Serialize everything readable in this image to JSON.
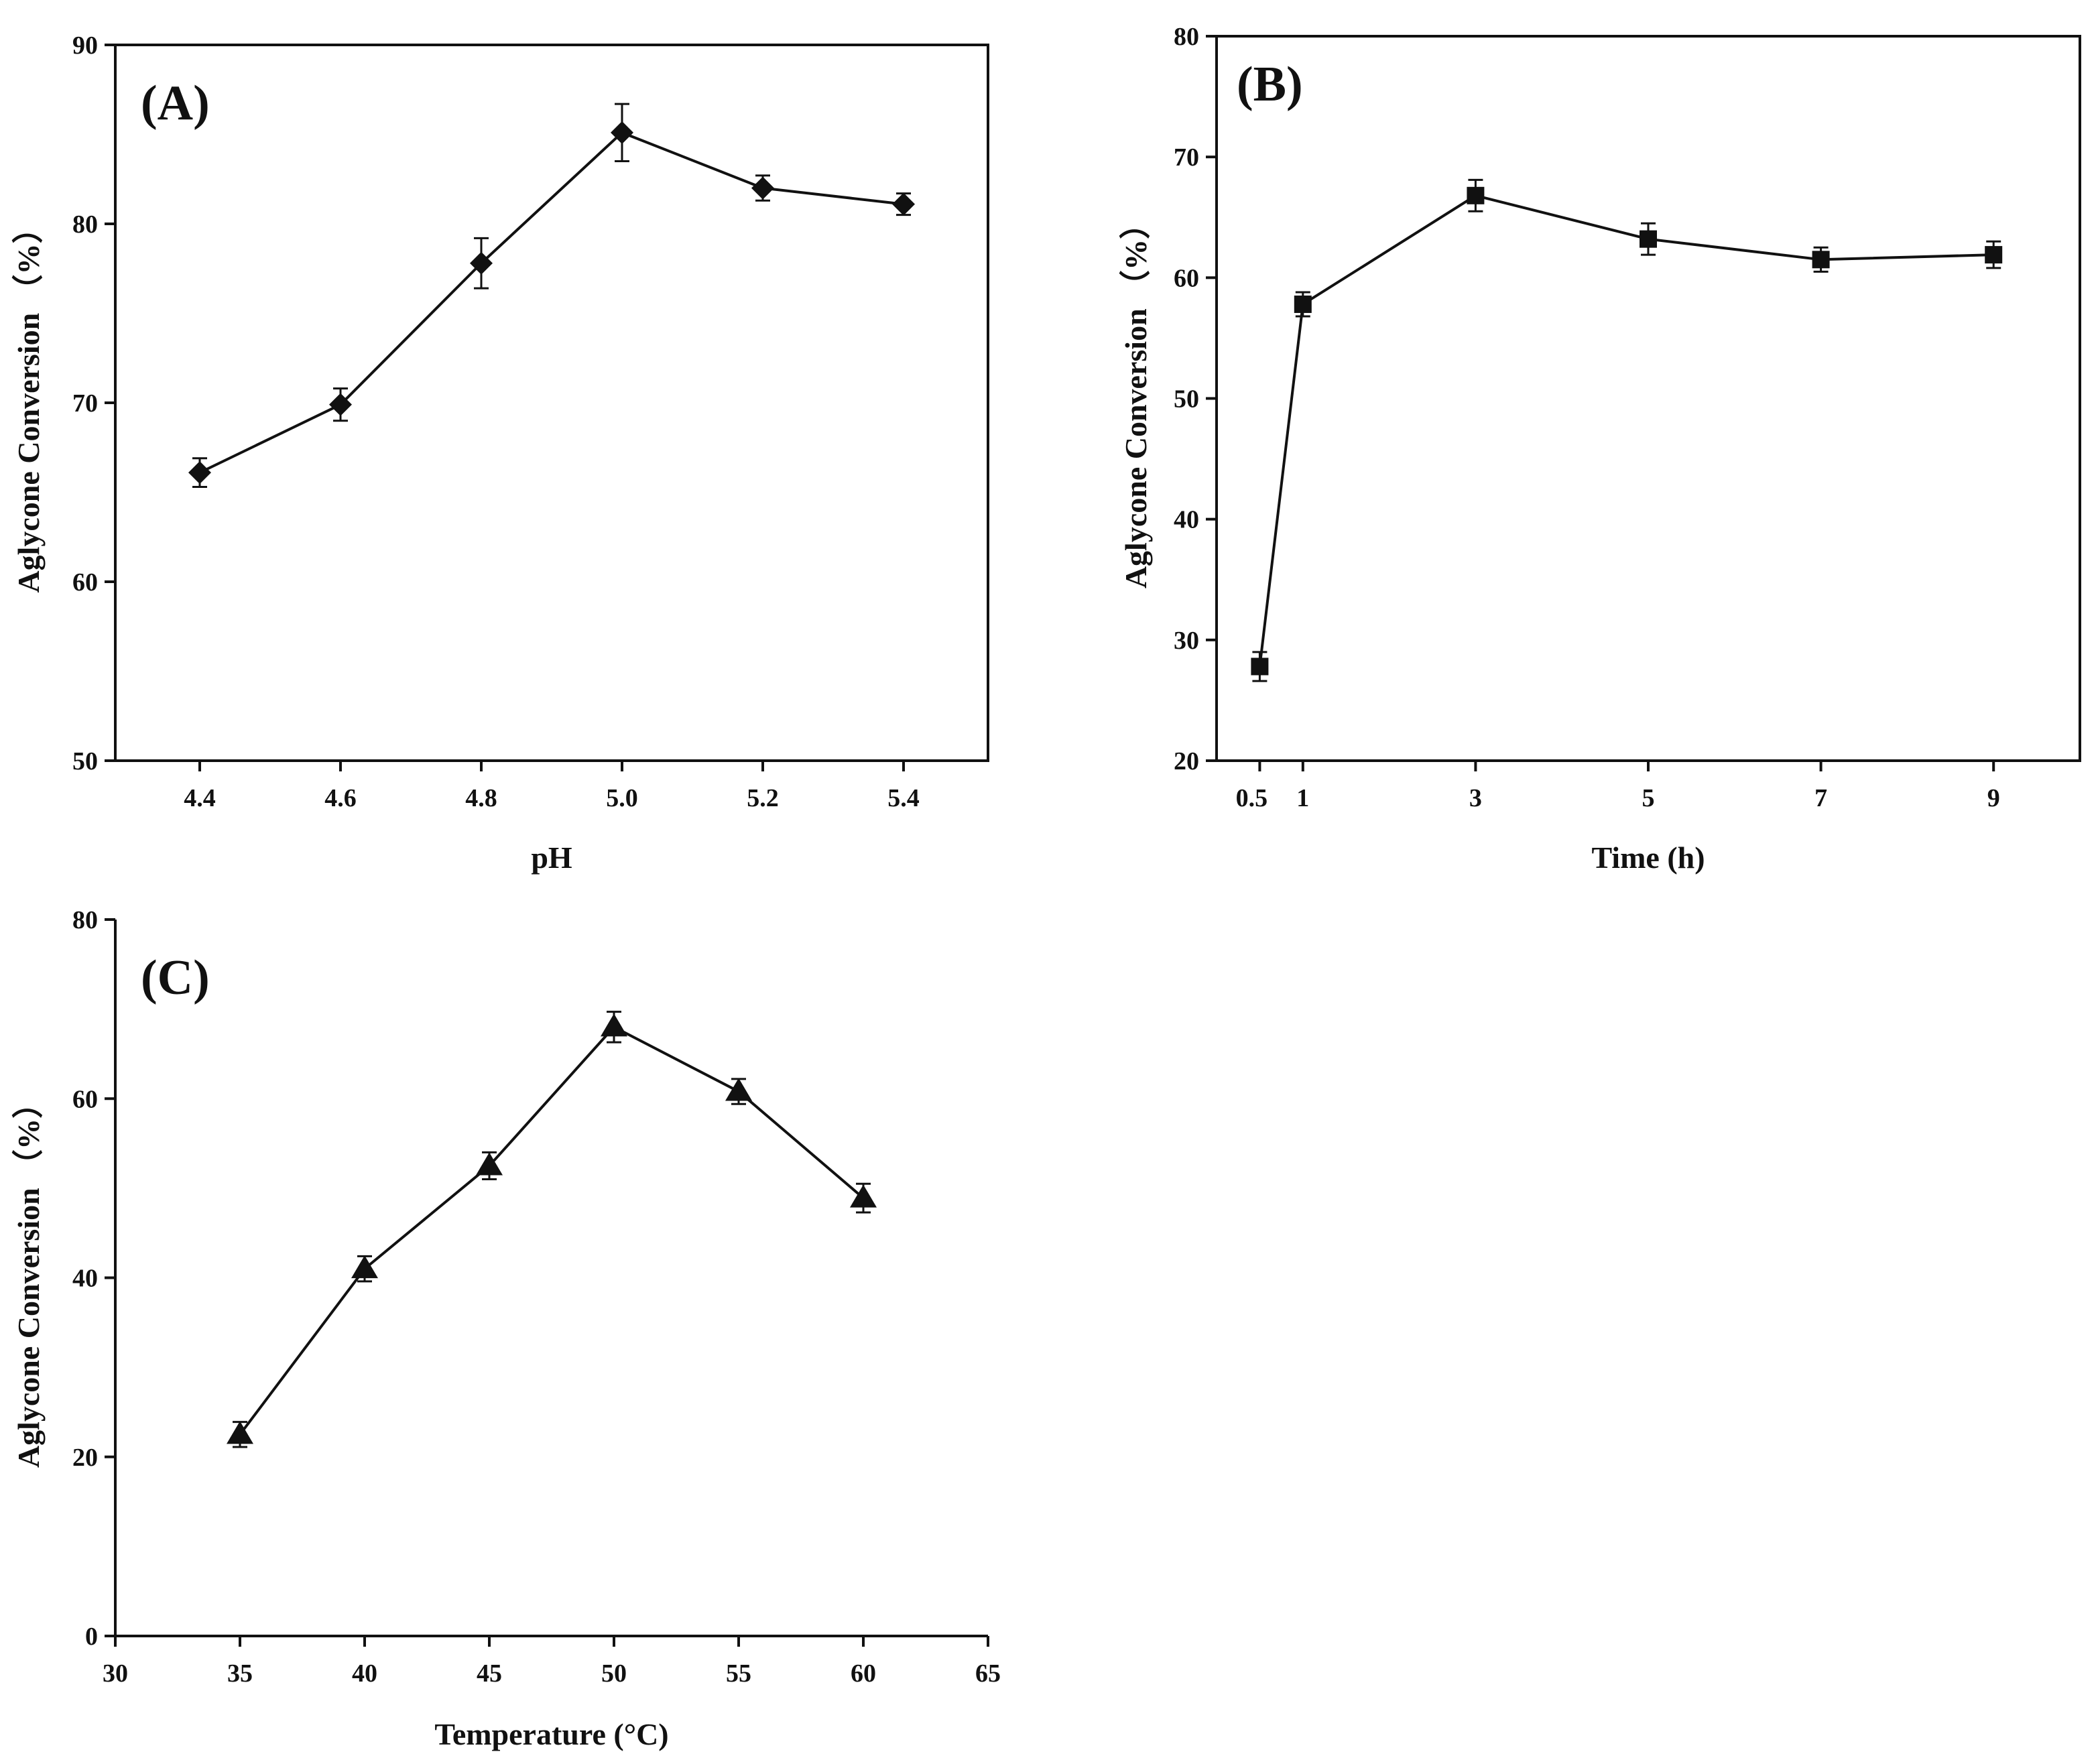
{
  "figure": {
    "ink": "#111111",
    "background": "#ffffff"
  },
  "chart_data": [
    {
      "id": "A",
      "type": "line",
      "panel_label": "(A)",
      "xlabel": "pH",
      "ylabel": "Aglycone Conversion （%）",
      "marker": "diamond",
      "xlim": [
        4.28,
        5.52
      ],
      "ylim": [
        50,
        90
      ],
      "xticks": [
        "4.4",
        "4.6",
        "4.8",
        "5.0",
        "5.2",
        "5.4"
      ],
      "yticks": [
        "50",
        "60",
        "70",
        "80",
        "90"
      ],
      "series": [
        {
          "name": "Aglycone Conversion",
          "x": [
            4.4,
            4.6,
            4.8,
            5.0,
            5.2,
            5.4
          ],
          "values": [
            66.1,
            69.9,
            77.8,
            85.1,
            82.0,
            81.1
          ],
          "errors": [
            0.8,
            0.9,
            1.4,
            1.6,
            0.7,
            0.6
          ]
        }
      ]
    },
    {
      "id": "B",
      "type": "line",
      "panel_label": "(B)",
      "xlabel": "Time (h)",
      "ylabel": "Aglycone Conversion （%）",
      "marker": "square",
      "xlim": [
        0,
        10
      ],
      "ylim": [
        20,
        80
      ],
      "xticks": [
        "0.5",
        "1",
        "3",
        "5",
        "7",
        "9"
      ],
      "yticks": [
        "20",
        "30",
        "40",
        "50",
        "60",
        "70",
        "80"
      ],
      "series": [
        {
          "name": "Aglycone Conversion",
          "x": [
            0.5,
            1,
            3,
            5,
            7,
            9
          ],
          "values": [
            27.8,
            57.8,
            66.8,
            63.2,
            61.5,
            61.9
          ],
          "errors": [
            1.2,
            1.0,
            1.3,
            1.3,
            1.0,
            1.1
          ]
        }
      ]
    },
    {
      "id": "C",
      "type": "line",
      "panel_label": "(C)",
      "xlabel": "Temperature (°C)",
      "ylabel": "Aglycone Conversion （%）",
      "marker": "triangle",
      "xlim": [
        30,
        65
      ],
      "ylim": [
        0,
        80
      ],
      "xticks": [
        "30",
        "35",
        "40",
        "45",
        "50",
        "55",
        "60",
        "65"
      ],
      "yticks": [
        "0",
        "20",
        "40",
        "60",
        "80"
      ],
      "series": [
        {
          "name": "Aglycone Conversion",
          "x": [
            35,
            40,
            45,
            50,
            55,
            60
          ],
          "values": [
            22.5,
            41.0,
            52.5,
            68.0,
            60.8,
            48.9
          ],
          "errors": [
            1.4,
            1.4,
            1.5,
            1.7,
            1.4,
            1.6
          ]
        }
      ]
    }
  ]
}
